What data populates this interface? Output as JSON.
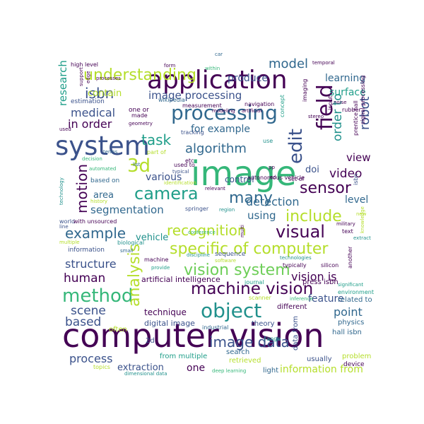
{
  "palette": {
    "dark_purple": "#440154",
    "indigo": "#3b528b",
    "blue": "#31688e",
    "teal": "#21918c",
    "sea_green": "#1f9e89",
    "green": "#35b779",
    "light_green": "#6ece58",
    "lime": "#b5de2b",
    "yellow": "#fde725"
  },
  "words": [
    "computer vision",
    "image",
    "application",
    "system",
    "processing",
    "field",
    "object",
    "machine vision",
    "camera",
    "sensor",
    "vision system",
    "visual",
    "specific of computer",
    "method",
    "include",
    "edit",
    "understanding",
    "image data",
    "isbn",
    "recognition",
    "motion",
    "3d",
    "task",
    "algorithm",
    "example",
    "analysis",
    "many",
    "robot",
    "image processing",
    "model",
    "research",
    "order to",
    "medical",
    "in order",
    "for example",
    "detection",
    "segmentation",
    "view",
    "video",
    "doi",
    "vision is",
    "structure",
    "human",
    "scene",
    "based",
    "process",
    "feature",
    "point",
    "information from",
    "extraction",
    "one",
    "technique",
    "using",
    "level",
    "area",
    "vehicle",
    "various",
    "control",
    "learning",
    "surface",
    "produce",
    "contain",
    "artificial intelligence",
    "digital image",
    "theory",
    "different",
    "related to",
    "physics",
    "hall isbn",
    "press isbn",
    "problem",
    "device",
    "usually",
    "light",
    "search",
    "retrieved",
    "data from",
    "2d",
    "from multiple",
    "deep learning",
    "dimensional data",
    "topics",
    "often",
    "industrial",
    "journal",
    "scanner",
    "inference",
    "environment",
    "significant",
    "silicon",
    "typically",
    "technologies",
    "sequence",
    "software",
    "discipline",
    "machine",
    "provide",
    "biological",
    "small",
    "information",
    "multiple",
    "world",
    "with unsourced",
    "line",
    "list",
    "used to",
    "typical",
    "based on",
    "identification",
    "relevant",
    "springer",
    "region",
    "conference",
    "multi",
    "military",
    "text",
    "extract",
    "another",
    "knowledge",
    "new",
    "technology",
    "history",
    "automated",
    "decision",
    "terms",
    "part of",
    "tracking",
    "use",
    "etc",
    "pp",
    "set of",
    "autonomous vehicle",
    "isbn",
    "signal processing",
    "prentice hall",
    "rubber",
    "input",
    "concept",
    "imaging",
    "navigation",
    "artificial",
    "modeling",
    "measurement",
    "wikipedia",
    "one or",
    "made",
    "geometry",
    "estimation",
    "high level",
    "edge",
    "support",
    "processes",
    "used",
    "form",
    "within",
    "car",
    "temporal",
    "noise",
    "stereo",
    "ed",
    "range",
    "edit"
  ]
}
